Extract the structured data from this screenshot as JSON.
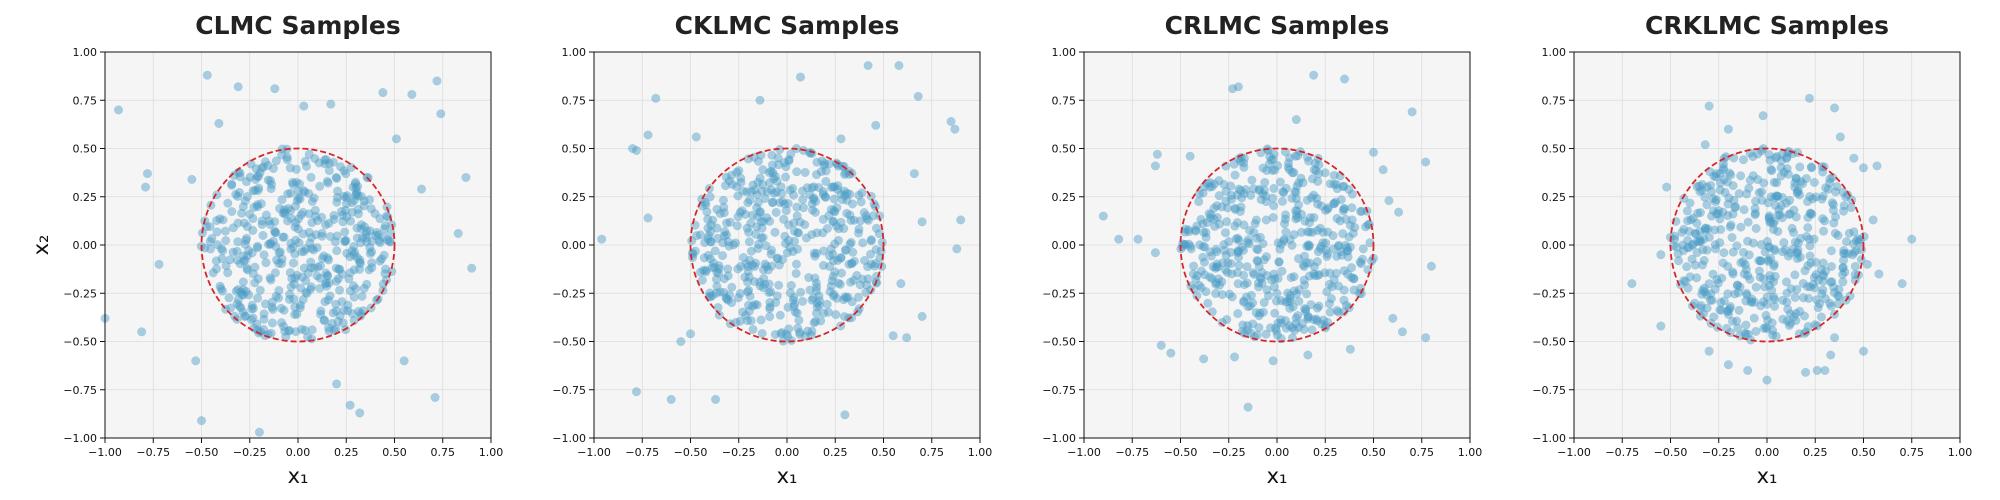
{
  "colors": {
    "points": "#4a9cc6",
    "circle": "#d62728",
    "background": "#f5f5f5"
  },
  "chart_data": [
    {
      "type": "scatter",
      "title": "CLMC Samples",
      "xlabel": "x₁",
      "ylabel": "x₂",
      "xlim": [
        -1.0,
        1.0
      ],
      "ylim": [
        -1.0,
        1.0
      ],
      "xticks": [
        "−1.00",
        "−0.75",
        "−0.50",
        "−0.25",
        "0.00",
        "0.25",
        "0.50",
        "0.75",
        "1.00"
      ],
      "yticks": [
        "−1.00",
        "−0.75",
        "−0.50",
        "−0.25",
        "0.00",
        "0.25",
        "0.50",
        "0.75",
        "1.00"
      ],
      "n_points": 500,
      "reference_circle": {
        "center": [
          0,
          0
        ],
        "radius": 0.5
      },
      "outliers": [
        [
          -0.93,
          0.7
        ],
        [
          -0.47,
          0.88
        ],
        [
          -0.31,
          0.82
        ],
        [
          -0.12,
          0.81
        ],
        [
          0.17,
          0.73
        ],
        [
          0.44,
          0.79
        ],
        [
          0.72,
          0.85
        ],
        [
          0.74,
          0.68
        ],
        [
          -0.78,
          0.37
        ],
        [
          -0.79,
          0.3
        ],
        [
          -0.72,
          -0.1
        ],
        [
          -0.55,
          0.34
        ],
        [
          -0.53,
          -0.6
        ],
        [
          -0.5,
          -0.91
        ],
        [
          -0.2,
          -0.97
        ],
        [
          0.27,
          -0.83
        ],
        [
          0.32,
          -0.87
        ],
        [
          0.2,
          -0.72
        ],
        [
          0.55,
          -0.6
        ],
        [
          0.71,
          -0.79
        ],
        [
          0.87,
          0.35
        ],
        [
          0.83,
          0.06
        ],
        [
          0.64,
          0.29
        ],
        [
          0.9,
          -0.12
        ],
        [
          -0.81,
          -0.45
        ],
        [
          -1.0,
          -0.38
        ],
        [
          0.59,
          0.78
        ],
        [
          0.51,
          0.55
        ],
        [
          -0.41,
          0.63
        ],
        [
          0.03,
          0.72
        ]
      ]
    },
    {
      "type": "scatter",
      "title": "CKLMC Samples",
      "xlabel": "x₁",
      "ylabel": "",
      "xlim": [
        -1.0,
        1.0
      ],
      "ylim": [
        -1.0,
        1.0
      ],
      "xticks": [
        "−1.00",
        "−0.75",
        "−0.50",
        "−0.25",
        "0.00",
        "0.25",
        "0.50",
        "0.75",
        "1.00"
      ],
      "yticks": [
        "−1.00",
        "−0.75",
        "−0.50",
        "−0.25",
        "0.00",
        "0.25",
        "0.50",
        "0.75",
        "1.00"
      ],
      "n_points": 500,
      "reference_circle": {
        "center": [
          0,
          0
        ],
        "radius": 0.5
      },
      "outliers": [
        [
          -0.68,
          0.76
        ],
        [
          -0.8,
          0.5
        ],
        [
          -0.78,
          0.49
        ],
        [
          -0.72,
          0.57
        ],
        [
          -0.47,
          0.56
        ],
        [
          -0.14,
          0.75
        ],
        [
          0.07,
          0.87
        ],
        [
          0.42,
          0.93
        ],
        [
          0.58,
          0.93
        ],
        [
          0.68,
          0.77
        ],
        [
          0.85,
          0.64
        ],
        [
          0.87,
          0.6
        ],
        [
          0.7,
          0.12
        ],
        [
          0.9,
          0.13
        ],
        [
          0.88,
          -0.02
        ],
        [
          0.62,
          -0.48
        ],
        [
          0.59,
          -0.2
        ],
        [
          0.7,
          -0.37
        ],
        [
          0.3,
          -0.88
        ],
        [
          -0.37,
          -0.8
        ],
        [
          -0.6,
          -0.8
        ],
        [
          -0.78,
          -0.76
        ],
        [
          -0.96,
          0.03
        ],
        [
          -0.72,
          0.14
        ],
        [
          -0.55,
          -0.5
        ],
        [
          0.46,
          0.62
        ],
        [
          0.28,
          0.55
        ],
        [
          -0.5,
          -0.46
        ],
        [
          0.55,
          -0.47
        ],
        [
          0.66,
          0.37
        ]
      ]
    },
    {
      "type": "scatter",
      "title": "CRLMC Samples",
      "xlabel": "x₁",
      "ylabel": "",
      "xlim": [
        -1.0,
        1.0
      ],
      "ylim": [
        -1.0,
        1.0
      ],
      "xticks": [
        "−1.00",
        "−0.75",
        "−0.50",
        "−0.25",
        "0.00",
        "0.25",
        "0.50",
        "0.75",
        "1.00"
      ],
      "yticks": [
        "−1.00",
        "−0.75",
        "−0.50",
        "−0.25",
        "0.00",
        "0.25",
        "0.50",
        "0.75",
        "1.00"
      ],
      "n_points": 500,
      "reference_circle": {
        "center": [
          0,
          0
        ],
        "radius": 0.5
      },
      "outliers": [
        [
          -0.23,
          0.81
        ],
        [
          -0.2,
          0.82
        ],
        [
          0.1,
          0.65
        ],
        [
          0.19,
          0.88
        ],
        [
          0.35,
          0.86
        ],
        [
          0.55,
          0.39
        ],
        [
          0.7,
          0.69
        ],
        [
          0.77,
          0.43
        ],
        [
          0.63,
          0.17
        ],
        [
          0.8,
          -0.11
        ],
        [
          0.6,
          -0.38
        ],
        [
          0.77,
          -0.48
        ],
        [
          0.65,
          -0.45
        ],
        [
          0.38,
          -0.54
        ],
        [
          -0.15,
          -0.84
        ],
        [
          -0.22,
          -0.58
        ],
        [
          -0.02,
          -0.6
        ],
        [
          -0.6,
          -0.52
        ],
        [
          -0.38,
          -0.59
        ],
        [
          -0.9,
          0.15
        ],
        [
          -0.82,
          0.03
        ],
        [
          -0.72,
          0.03
        ],
        [
          -0.63,
          0.41
        ],
        [
          -0.62,
          0.47
        ],
        [
          -0.45,
          0.46
        ],
        [
          0.58,
          0.23
        ],
        [
          -0.55,
          -0.56
        ],
        [
          0.16,
          -0.57
        ],
        [
          0.5,
          0.48
        ],
        [
          -0.63,
          -0.04
        ]
      ]
    },
    {
      "type": "scatter",
      "title": "CRKLMC Samples",
      "xlabel": "x₁",
      "ylabel": "",
      "xlim": [
        -1.0,
        1.0
      ],
      "ylim": [
        -1.0,
        1.0
      ],
      "xticks": [
        "−1.00",
        "−0.75",
        "−0.50",
        "−0.25",
        "0.00",
        "0.25",
        "0.50",
        "0.75",
        "1.00"
      ],
      "yticks": [
        "−1.00",
        "−0.75",
        "−0.50",
        "−0.25",
        "0.00",
        "0.25",
        "0.50",
        "0.75",
        "1.00"
      ],
      "n_points": 500,
      "reference_circle": {
        "center": [
          0,
          0
        ],
        "radius": 0.5
      },
      "outliers": [
        [
          -0.3,
          0.72
        ],
        [
          -0.2,
          0.6
        ],
        [
          -0.02,
          0.67
        ],
        [
          0.22,
          0.76
        ],
        [
          0.35,
          0.71
        ],
        [
          0.38,
          0.56
        ],
        [
          0.57,
          0.41
        ],
        [
          0.5,
          0.4
        ],
        [
          0.75,
          0.03
        ],
        [
          0.58,
          -0.15
        ],
        [
          0.7,
          -0.2
        ],
        [
          0.5,
          -0.55
        ],
        [
          0.33,
          -0.57
        ],
        [
          0.3,
          -0.65
        ],
        [
          0.2,
          -0.66
        ],
        [
          0.0,
          -0.7
        ],
        [
          -0.1,
          -0.65
        ],
        [
          -0.3,
          -0.55
        ],
        [
          -0.55,
          -0.42
        ],
        [
          -0.7,
          -0.2
        ],
        [
          -0.52,
          0.3
        ],
        [
          -0.5,
          0.04
        ],
        [
          -0.55,
          -0.05
        ],
        [
          0.35,
          -0.48
        ],
        [
          0.52,
          -0.1
        ],
        [
          -0.32,
          0.52
        ],
        [
          0.26,
          -0.65
        ],
        [
          0.55,
          0.13
        ],
        [
          -0.2,
          -0.62
        ],
        [
          0.45,
          0.45
        ]
      ]
    }
  ]
}
